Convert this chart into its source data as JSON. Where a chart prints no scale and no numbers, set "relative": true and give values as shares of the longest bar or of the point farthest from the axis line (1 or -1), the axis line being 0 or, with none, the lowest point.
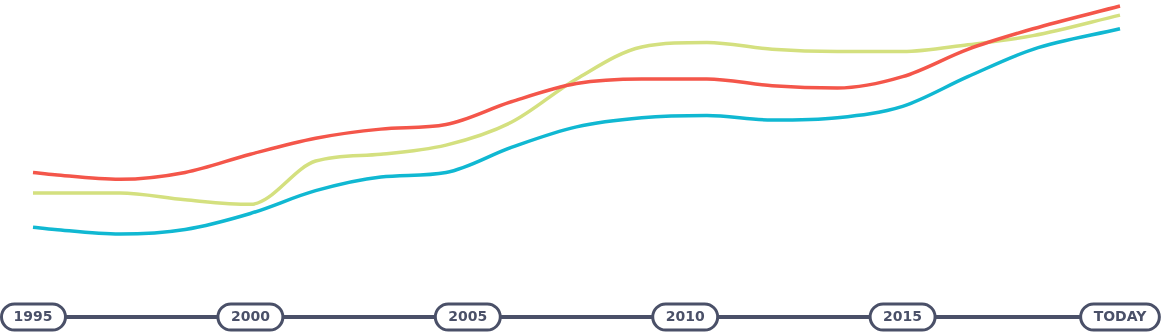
{
  "chart_data": {
    "type": "line",
    "relative": true,
    "x": [
      1995,
      1995.5,
      1997,
      1998.5,
      2000,
      2001.5,
      2003,
      2004.5,
      2006,
      2007.5,
      2009,
      2010.5,
      2012,
      2013.5,
      2015,
      2016.5,
      2018,
      2020
    ],
    "xlim": [
      1995,
      2020
    ],
    "xticks": [
      1995,
      2000,
      2005,
      2010,
      2015,
      {
        "value": 2020,
        "label": "TODAY"
      }
    ],
    "series": [
      {
        "color": "#f4564a",
        "values": [
          0.27,
          0.26,
          0.24,
          0.27,
          0.35,
          0.42,
          0.46,
          0.48,
          0.58,
          0.66,
          0.68,
          0.68,
          0.65,
          0.64,
          0.69,
          0.81,
          0.9,
          1
        ]
      },
      {
        "color": "#d4e07f",
        "values": [
          0.18,
          0.18,
          0.18,
          0.15,
          0.13,
          0.32,
          0.35,
          0.39,
          0.49,
          0.68,
          0.82,
          0.84,
          0.81,
          0.8,
          0.8,
          0.83,
          0.87,
          0.96
        ]
      },
      {
        "color": "#10b8d2",
        "values": [
          0.03,
          0.02,
          0,
          0.02,
          0.09,
          0.19,
          0.25,
          0.27,
          0.38,
          0.47,
          0.51,
          0.52,
          0.5,
          0.51,
          0.56,
          0.69,
          0.81,
          0.9
        ]
      }
    ],
    "grid": false,
    "legend": false,
    "marker": "none",
    "line_style": "solid"
  }
}
